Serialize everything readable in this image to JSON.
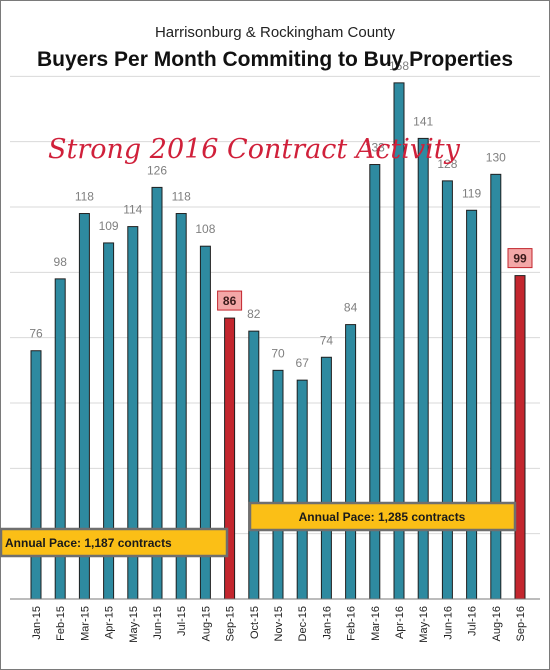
{
  "chart_data": {
    "type": "bar",
    "subtitle": "Harrisonburg & Rockingham County",
    "title": "Buyers Per Month Commiting to Buy Properties",
    "annotation": "Strong 2016 Contract Activity",
    "categories": [
      "Jan-15",
      "Feb-15",
      "Mar-15",
      "Apr-15",
      "May-15",
      "Jun-15",
      "Jul-15",
      "Aug-15",
      "Sep-15",
      "Oct-15",
      "Nov-15",
      "Dec-15",
      "Jan-16",
      "Feb-16",
      "Mar-16",
      "Apr-16",
      "May-16",
      "Jun-16",
      "Jul-16",
      "Aug-16",
      "Sep-16"
    ],
    "values": [
      76,
      98,
      118,
      109,
      114,
      126,
      118,
      108,
      86,
      82,
      70,
      67,
      74,
      84,
      133,
      158,
      141,
      128,
      119,
      130,
      99
    ],
    "highlighted": [
      "Sep-15",
      "Sep-16"
    ],
    "ylim": [
      0,
      180
    ],
    "grid": true,
    "callouts": [
      {
        "text": "Annual Pace: 1,187 contracts"
      },
      {
        "text": "Annual Pace: 1,285 contracts"
      }
    ],
    "colors": {
      "bar": "#2e8aa0",
      "bar_highlight": "#c3262e",
      "label_box_fill": "#f3a7a7",
      "label_box_stroke": "#c3262e",
      "pace_fill": "#fbbf16",
      "grid": "#d9d9d9",
      "border": "#7a7a7a"
    }
  }
}
